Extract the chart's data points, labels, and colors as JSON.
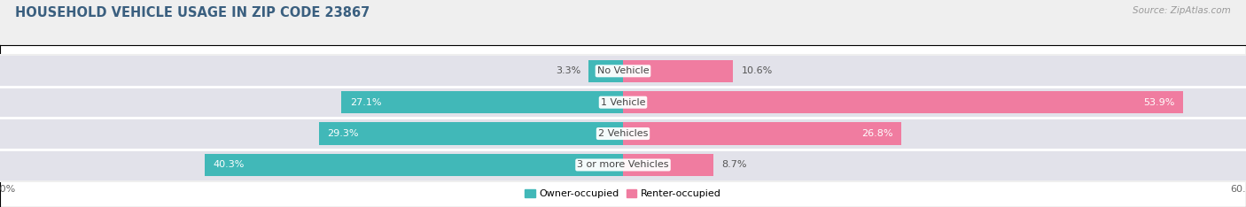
{
  "title": "HOUSEHOLD VEHICLE USAGE IN ZIP CODE 23867",
  "source": "Source: ZipAtlas.com",
  "categories": [
    "No Vehicle",
    "1 Vehicle",
    "2 Vehicles",
    "3 or more Vehicles"
  ],
  "owner_values": [
    3.3,
    27.1,
    29.3,
    40.3
  ],
  "renter_values": [
    10.6,
    53.9,
    26.8,
    8.7
  ],
  "owner_color": "#41b8b8",
  "renter_color": "#f07ca0",
  "bg_color": "#efefef",
  "bar_bg_color": "#e2e2ea",
  "xlim": 60.0,
  "bar_height": 0.72,
  "bg_bar_height": 0.98,
  "title_fontsize": 10.5,
  "source_fontsize": 7.5,
  "label_fontsize": 8,
  "tick_fontsize": 8,
  "legend_fontsize": 8
}
